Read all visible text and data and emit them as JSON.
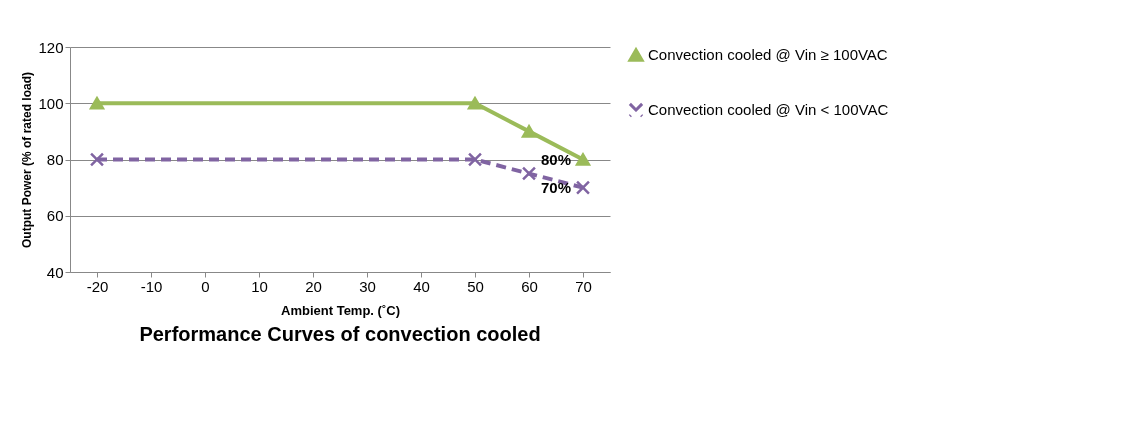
{
  "chart_data": {
    "type": "line",
    "title": "Performance Curves of convection cooled",
    "xlabel": "Ambient Temp. (˚C)",
    "ylabel": "Output Power (% of rated load)",
    "categories": [
      "-20",
      "-10",
      "0",
      "10",
      "20",
      "30",
      "40",
      "50",
      "60",
      "70"
    ],
    "series": [
      {
        "name": "Convection cooled @ Vin ≥ 100VAC",
        "color": "#9bbb59",
        "marker": "triangle",
        "line_style": "solid",
        "values": [
          100,
          null,
          null,
          null,
          null,
          null,
          null,
          100,
          90,
          80
        ]
      },
      {
        "name": "Convection cooled @ Vin < 100VAC",
        "color": "#8064a2",
        "marker": "cross",
        "line_style": "dashed",
        "values": [
          80,
          null,
          null,
          null,
          null,
          null,
          null,
          80,
          75,
          70
        ]
      }
    ],
    "annotations": [
      {
        "text": "80%",
        "x": "70",
        "y": 80
      },
      {
        "text": "70%",
        "x": "70",
        "y": 70
      }
    ],
    "ylim": [
      40,
      120
    ],
    "yticks": [
      40,
      60,
      80,
      100,
      120
    ],
    "grid": "y",
    "legend": "right"
  }
}
